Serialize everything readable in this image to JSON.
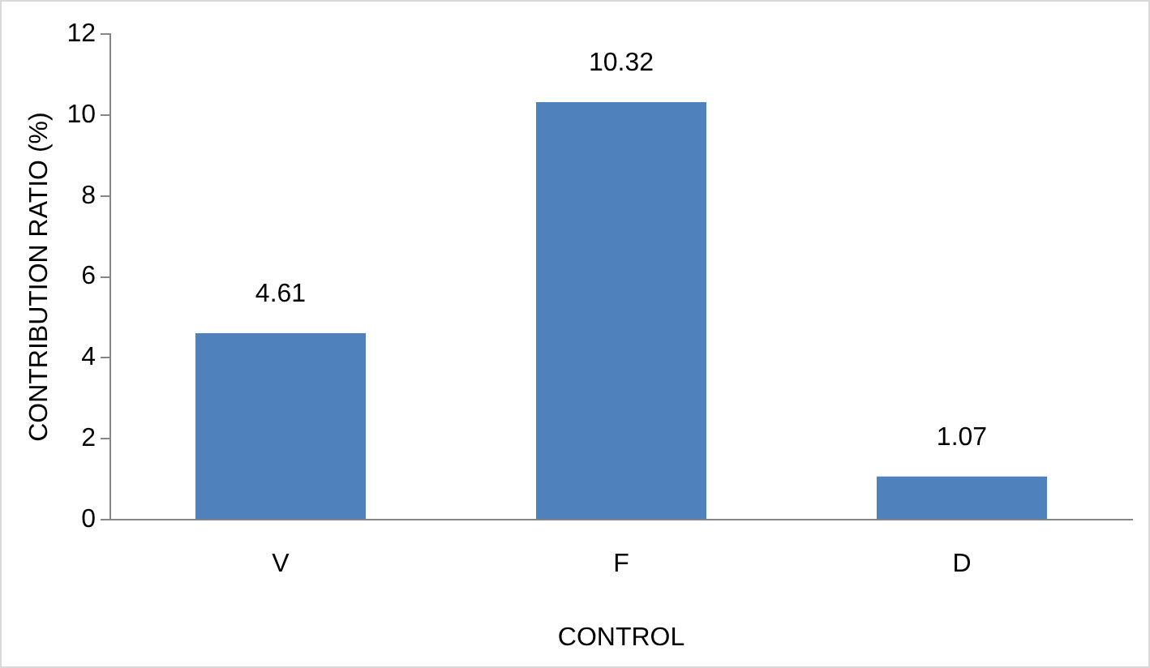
{
  "chart_data": {
    "type": "bar",
    "xlabel": "CONTROL",
    "ylabel": "CONTRIBUTION RATIO (%)",
    "categories": [
      "V",
      "F",
      "D"
    ],
    "values": [
      4.61,
      10.32,
      1.07
    ],
    "color": "#4f81bd",
    "ylim": [
      0,
      12
    ],
    "yticks": [
      0,
      2,
      4,
      6,
      8,
      10,
      12
    ],
    "grid": false,
    "data_labels": true
  }
}
